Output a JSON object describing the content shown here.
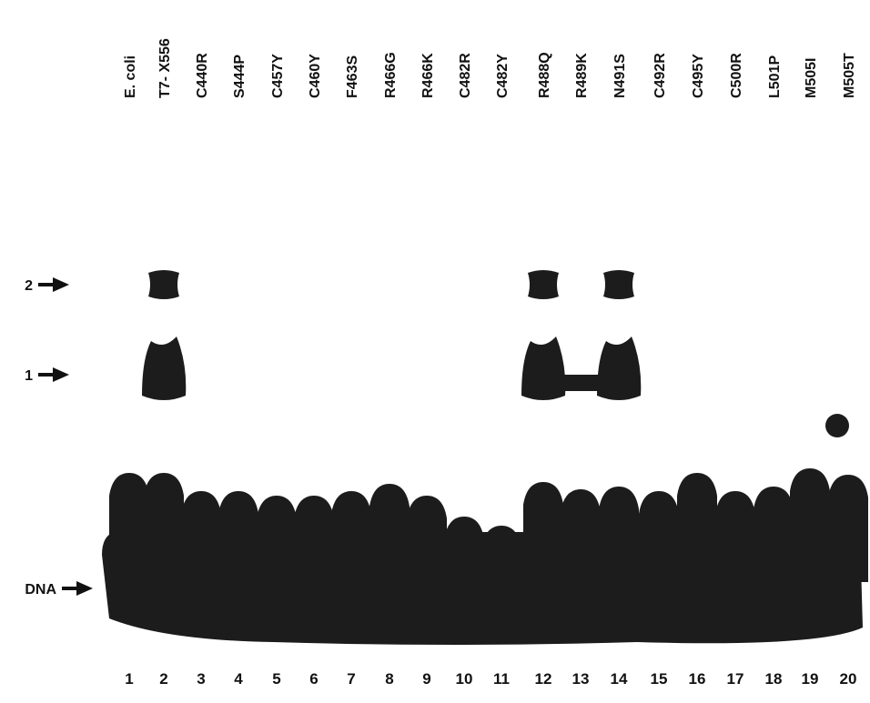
{
  "lane_labels": [
    "E. coli",
    "T7- X556",
    "C440R",
    "S444P",
    "C457Y",
    "C460Y",
    "F463S",
    "R466G",
    "R466K",
    "C482R",
    "C482Y",
    "R488Q",
    "R489K",
    "N491S",
    "C492R",
    "C495Y",
    "C500R",
    "L501P",
    "M505I",
    "M505T"
  ],
  "lane_numbers": [
    "1",
    "2",
    "3",
    "4",
    "5",
    "6",
    "7",
    "8",
    "9",
    "10",
    "11",
    "12",
    "13",
    "14",
    "15",
    "16",
    "17",
    "18",
    "19",
    "20"
  ],
  "markers": [
    "2",
    "1",
    "DNA"
  ]
}
